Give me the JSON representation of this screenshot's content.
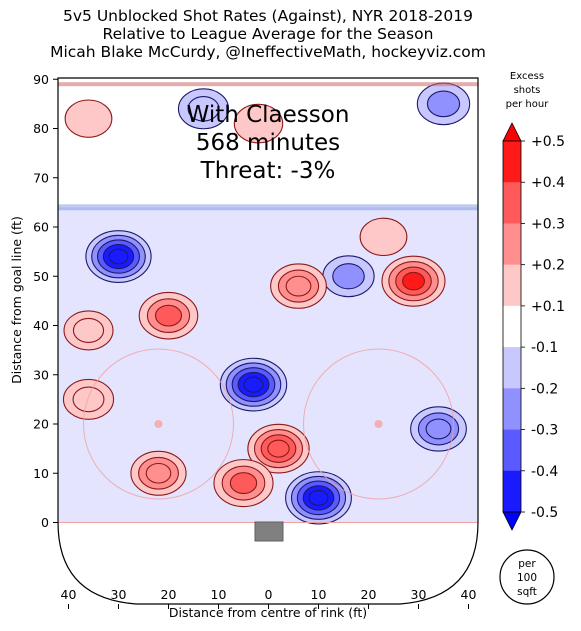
{
  "header": {
    "title_line1": "5v5 Unblocked Shot Rates (Against), NYR 2018-2019",
    "title_line2": "Relative to League Average for the Season",
    "title_line3": "Micah Blake McCurdy, @IneffectiveMath, hockeyviz.com"
  },
  "annotation": {
    "line1": "With Claesson",
    "line2": "568 minutes",
    "line3": "Threat: -3%"
  },
  "colorbar": {
    "title_line1": "Excess",
    "title_line2": "shots",
    "title_line3": "per hour",
    "ticks": [
      "+0.5",
      "+0.4",
      "+0.3",
      "+0.2",
      "+0.1",
      "-0.1",
      "-0.2",
      "-0.3",
      "-0.4",
      "-0.5"
    ],
    "colors": [
      "#ff1a1a",
      "#ff5a5a",
      "#ff8f8f",
      "#ffc8c8",
      "#ffffff",
      "#c8c8ff",
      "#9090ff",
      "#5a5aff",
      "#1a1aff"
    ],
    "extend_top_color": "#ff0000",
    "extend_bottom_color": "#0000ff"
  },
  "scale_badge": {
    "line1": "per",
    "line2": "100",
    "line3": "sqft"
  },
  "chart_data": {
    "type": "heatmap",
    "title": "5v5 Unblocked Shot Rates (Against), NYR 2018-2019 / Relative to League Average for the Season",
    "xlabel": "Distance from centre of rink (ft)",
    "ylabel": "Distance from goal line (ft)",
    "xlim": [
      42,
      -42
    ],
    "ylim": [
      -13,
      90
    ],
    "x_ticks": [
      40,
      30,
      20,
      10,
      0,
      10,
      20,
      30,
      40
    ],
    "x_tick_values": [
      40,
      30,
      20,
      10,
      0,
      -10,
      -20,
      -30,
      -40
    ],
    "y_ticks": [
      0,
      10,
      20,
      30,
      40,
      50,
      60,
      70,
      80,
      90
    ],
    "levels": [
      -0.5,
      -0.4,
      -0.3,
      -0.2,
      -0.1,
      0.1,
      0.2,
      0.3,
      0.4,
      0.5
    ],
    "features": [
      {
        "x": 30,
        "y": 54,
        "value": -0.45
      },
      {
        "x": 3,
        "y": 28,
        "value": -0.47
      },
      {
        "x": -10,
        "y": 5,
        "value": -0.46
      },
      {
        "x": -35,
        "y": 85,
        "value": -0.22
      },
      {
        "x": -16,
        "y": 50,
        "value": -0.2
      },
      {
        "x": -34,
        "y": 19,
        "value": -0.28
      },
      {
        "x": 13,
        "y": 84,
        "value": -0.18
      },
      {
        "x": -2,
        "y": 15,
        "value": 0.38
      },
      {
        "x": 5,
        "y": 8,
        "value": 0.34
      },
      {
        "x": 20,
        "y": 42,
        "value": 0.33
      },
      {
        "x": 22,
        "y": 10,
        "value": 0.27
      },
      {
        "x": -29,
        "y": 49,
        "value": 0.41
      },
      {
        "x": -6,
        "y": 48,
        "value": 0.28
      },
      {
        "x": 36,
        "y": 25,
        "value": 0.18
      },
      {
        "x": 36,
        "y": 39,
        "value": 0.16
      },
      {
        "x": 36,
        "y": 82,
        "value": 0.12
      },
      {
        "x": 2,
        "y": 81,
        "value": 0.15
      },
      {
        "x": -23,
        "y": 58,
        "value": 0.12
      }
    ],
    "reference_lines": {
      "blue_line_y": 64,
      "goal_line_y": 0,
      "top_line_y": 89
    }
  }
}
